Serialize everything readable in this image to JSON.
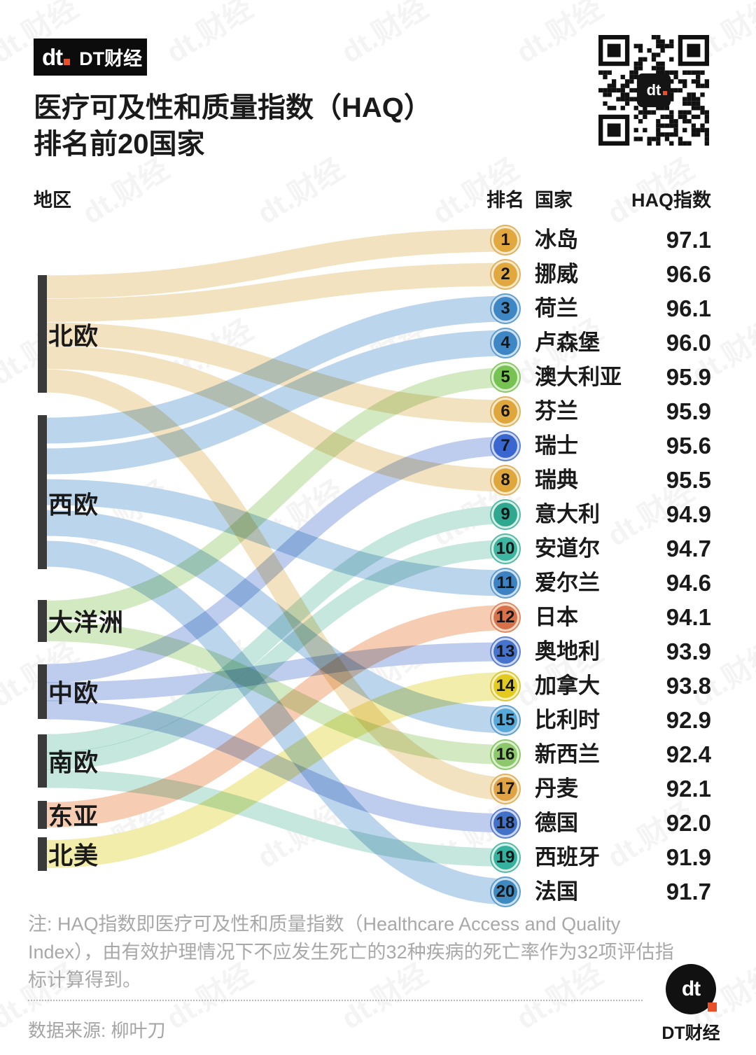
{
  "header": {
    "brand_mark": "dt",
    "brand_name": "DT财经"
  },
  "title": {
    "line1": "医疗可及性和质量指数（HAQ）",
    "line2": "排名前20国家"
  },
  "columns": {
    "region": "地区",
    "rank": "排名",
    "country": "国家",
    "score": "HAQ指数"
  },
  "chart_data": {
    "type": "sankey",
    "title": "医疗可及性和质量指数（HAQ）排名前20国家",
    "left_node_label": "地区",
    "right_columns": [
      "排名",
      "国家",
      "HAQ指数"
    ],
    "regions": [
      {
        "name": "北欧",
        "flow_color": "#f2e0ba",
        "ring_color": "#f7e9cb",
        "ring_outline": "#e0b25c",
        "ranks": [
          1,
          2,
          6,
          8,
          17
        ]
      },
      {
        "name": "西欧",
        "flow_color": "#b5d1ea",
        "ring_color": "#cde1f2",
        "ring_outline": "#5f9ecd",
        "ranks": [
          3,
          4,
          11,
          15,
          20
        ]
      },
      {
        "name": "大洋洲",
        "flow_color": "#cfe7bd",
        "ring_color": "#def0d1",
        "ring_outline": "#8ac768",
        "ranks": [
          5,
          16
        ]
      },
      {
        "name": "中欧",
        "flow_color": "#b9c9ec",
        "ring_color": "#ced9f3",
        "ring_outline": "#5e80d0",
        "ranks": [
          7,
          13,
          18
        ]
      },
      {
        "name": "南欧",
        "flow_color": "#c1e5da",
        "ring_color": "#d7efe7",
        "ring_outline": "#54baa7",
        "ranks": [
          9,
          10,
          19
        ]
      },
      {
        "name": "东亚",
        "flow_color": "#f5c9ad",
        "ring_color": "#f9dbc6",
        "ring_outline": "#dd8a64",
        "ranks": [
          12
        ]
      },
      {
        "name": "北美",
        "flow_color": "#f1eba3",
        "ring_color": "#f7f1bd",
        "ring_outline": "#d8c63c",
        "ranks": [
          14
        ]
      }
    ],
    "countries": [
      {
        "rank": 1,
        "name": "冰岛",
        "score": "97.1",
        "region": "北欧",
        "circle_color": "#e0a83e"
      },
      {
        "rank": 2,
        "name": "挪威",
        "score": "96.6",
        "region": "北欧",
        "circle_color": "#e0a83e"
      },
      {
        "rank": 3,
        "name": "荷兰",
        "score": "96.1",
        "region": "西欧",
        "circle_color": "#3e86c4"
      },
      {
        "rank": 4,
        "name": "卢森堡",
        "score": "96.0",
        "region": "西欧",
        "circle_color": "#3e86c4"
      },
      {
        "rank": 5,
        "name": "澳大利亚",
        "score": "95.9",
        "region": "大洋洲",
        "circle_color": "#76c353"
      },
      {
        "rank": 6,
        "name": "芬兰",
        "score": "95.9",
        "region": "北欧",
        "circle_color": "#dfa63c"
      },
      {
        "rank": 7,
        "name": "瑞士",
        "score": "95.6",
        "region": "中欧",
        "circle_color": "#3a66d0"
      },
      {
        "rank": 8,
        "name": "瑞典",
        "score": "95.5",
        "region": "北欧",
        "circle_color": "#dfa63c"
      },
      {
        "rank": 9,
        "name": "意大利",
        "score": "94.9",
        "region": "南欧",
        "circle_color": "#2fa88f"
      },
      {
        "rank": 10,
        "name": "安道尔",
        "score": "94.7",
        "region": "南欧",
        "circle_color": "#3cb6a0"
      },
      {
        "rank": 11,
        "name": "爱尔兰",
        "score": "94.6",
        "region": "西欧",
        "circle_color": "#3e82c2"
      },
      {
        "rank": 12,
        "name": "日本",
        "score": "94.1",
        "region": "东亚",
        "circle_color": "#d8714a"
      },
      {
        "rank": 13,
        "name": "奥地利",
        "score": "93.9",
        "region": "中欧",
        "circle_color": "#4673cc"
      },
      {
        "rank": 14,
        "name": "加拿大",
        "score": "93.8",
        "region": "北美",
        "circle_color": "#e2ca1e"
      },
      {
        "rank": 15,
        "name": "比利时",
        "score": "92.9",
        "region": "西欧",
        "circle_color": "#56a9d9"
      },
      {
        "rank": 16,
        "name": "新西兰",
        "score": "92.4",
        "region": "大洋洲",
        "circle_color": "#8dc86c"
      },
      {
        "rank": 17,
        "name": "丹麦",
        "score": "92.1",
        "region": "北欧",
        "circle_color": "#dfa244"
      },
      {
        "rank": 18,
        "name": "德国",
        "score": "92.0",
        "region": "中欧",
        "circle_color": "#4171c8"
      },
      {
        "rank": 19,
        "name": "西班牙",
        "score": "91.9",
        "region": "南欧",
        "circle_color": "#35b29f"
      },
      {
        "rank": 20,
        "name": "法国",
        "score": "91.7",
        "region": "西欧",
        "circle_color": "#3e8ac0"
      }
    ]
  },
  "note": "注: HAQ指数即医疗可及性和质量指数（Healthcare Access and Quality Index），由有效护理情况下不应发生死亡的32种疾病的死亡率作为32项评估指标计算得到。",
  "source": "数据来源: 柳叶刀",
  "footer": {
    "brand_mark": "dt",
    "brand_name": "DT财经"
  },
  "watermark": "dt.财经"
}
